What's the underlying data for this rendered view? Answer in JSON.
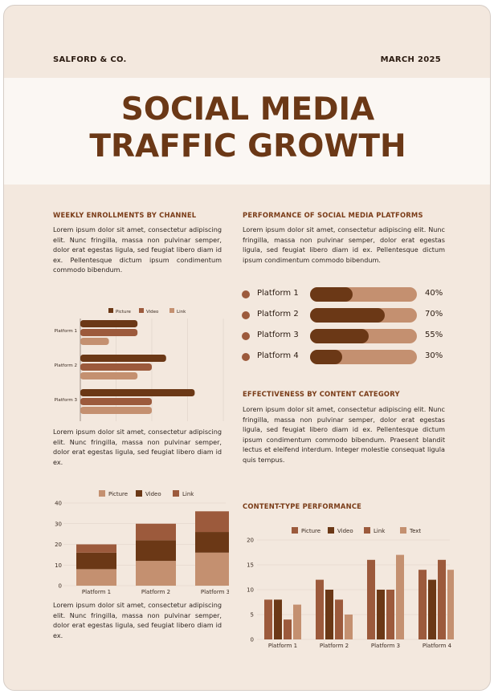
{
  "header": {
    "company": "SALFORD & CO.",
    "date": "MARCH 2025"
  },
  "title": {
    "line1": "SOCIAL MEDIA",
    "line2": "TRAFFIC GROWTH"
  },
  "colors": {
    "dark": "#6b3816",
    "mid": "#9c5a3c",
    "light": "#c49070",
    "background": "#f3e8de",
    "band": "#fbf7f3"
  },
  "sections": {
    "weekly": {
      "title": "WEEKLY ENROLLMENTS BY CHANNEL",
      "text": "Lorem ipsum dolor sit amet, consectetur adipiscing elit. Nunc fringilla, massa non pulvinar semper, dolor erat egestas ligula, sed feugiat libero diam id ex. Pellentesque dictum ipsum condimentum commodo bibendum."
    },
    "performance": {
      "title": "PERFORMANCE OF SOCIAL MEDIA PLATFORMS",
      "text": "Lorem ipsum dolor sit amet, consectetur adipiscing elit. Nunc fringilla, massa non pulvinar semper, dolor erat egestas ligula, sed feugiat libero diam id ex. Pellentesque dictum ipsum condimentum commodo bibendum."
    },
    "middle_text": "Lorem ipsum dolor sit amet, consectetur adipiscing elit. Nunc fringilla, massa non pulvinar semper, dolor erat egestas ligula, sed feugiat libero diam id ex.",
    "effectiveness": {
      "title": "EFFECTIVENESS BY CONTENT CATEGORY",
      "text": "Lorem ipsum dolor sit amet, consectetur adipiscing elit. Nunc fringilla, massa non pulvinar semper, dolor erat egestas ligula, sed feugiat libero diam id ex. Pellentesque dictum ipsum condimentum commodo bibendum. Praesent blandit lectus et eleifend interdum. Integer molestie consequat ligula quis tempus."
    },
    "bottom_text": "Lorem ipsum dolor sit amet, consectetur adipiscing elit. Nunc fringilla, massa non pulvinar semper, dolor erat egestas ligula, sed feugiat libero diam id ex.",
    "content_type": {
      "title": "CONTENT-TYPE PERFORMANCE"
    }
  },
  "platform_bars": [
    {
      "label": "Platform 1",
      "value": 40,
      "pct": "40%"
    },
    {
      "label": "Platform 2",
      "value": 70,
      "pct": "70%"
    },
    {
      "label": "Platform 3",
      "value": 55,
      "pct": "55%"
    },
    {
      "label": "Platform 4",
      "value": 30,
      "pct": "30%"
    }
  ],
  "chart_data": [
    {
      "id": "hbar",
      "type": "bar",
      "orientation": "horizontal",
      "categories": [
        "Platform 1",
        "Platform 2",
        "Platform 3"
      ],
      "series": [
        {
          "name": "Picture",
          "values": [
            8,
            12,
            16
          ],
          "color": "#6b3816"
        },
        {
          "name": "Video",
          "values": [
            8,
            10,
            10
          ],
          "color": "#9c5a3c"
        },
        {
          "name": "Link",
          "values": [
            4,
            8,
            10
          ],
          "color": "#c49070"
        }
      ],
      "xlim": [
        0,
        20
      ],
      "xticks": [
        0,
        5,
        10,
        15,
        20
      ],
      "legend": "top"
    },
    {
      "id": "stack",
      "type": "bar",
      "stacked": true,
      "categories": [
        "Platform 1",
        "Platform 2",
        "Platform 3"
      ],
      "series": [
        {
          "name": "Picture",
          "values": [
            8,
            12,
            16
          ],
          "color": "#c49070"
        },
        {
          "name": "Video",
          "values": [
            8,
            10,
            10
          ],
          "color": "#6b3816"
        },
        {
          "name": "Link",
          "values": [
            4,
            8,
            10
          ],
          "color": "#9c5a3c"
        }
      ],
      "ylim": [
        0,
        40
      ],
      "yticks": [
        0,
        10,
        20,
        30,
        40
      ],
      "legend": "top"
    },
    {
      "id": "grouped",
      "type": "bar",
      "categories": [
        "Platform 1",
        "Platform 2",
        "Platform 3",
        "Platform 4"
      ],
      "series": [
        {
          "name": "Picture",
          "values": [
            8,
            12,
            16,
            14
          ],
          "color": "#9c5a3c"
        },
        {
          "name": "Video",
          "values": [
            8,
            10,
            10,
            12
          ],
          "color": "#6b3816"
        },
        {
          "name": "Link",
          "values": [
            4,
            8,
            10,
            16
          ],
          "color": "#9c5a3c"
        },
        {
          "name": "Text",
          "values": [
            7,
            5,
            17,
            14
          ],
          "color": "#c49070"
        }
      ],
      "ylim": [
        0,
        20
      ],
      "yticks": [
        0,
        5,
        10,
        15,
        20
      ],
      "legend": "top"
    }
  ]
}
